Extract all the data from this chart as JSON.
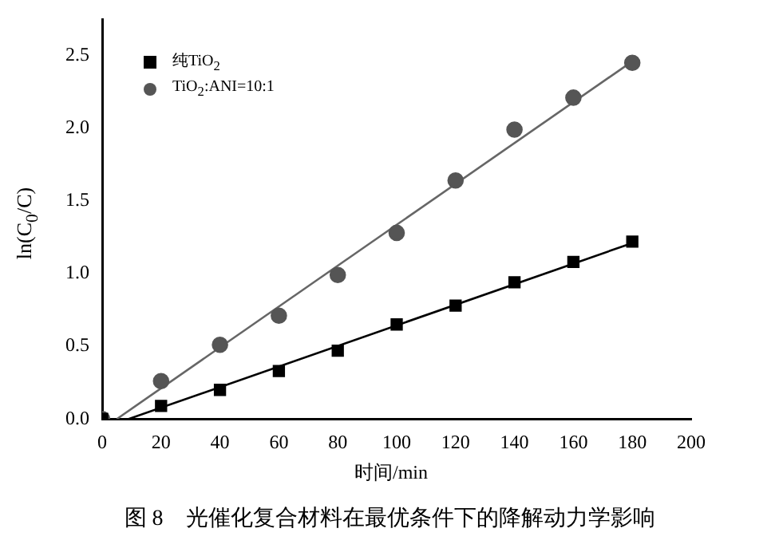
{
  "chart_data": {
    "type": "scatter",
    "xlabel": "时间/min",
    "ylabel": "ln(C$_{0}$/C)",
    "xlim": [
      0,
      200
    ],
    "ylim": [
      0,
      2.75
    ],
    "xticks": [
      0,
      20,
      40,
      60,
      80,
      100,
      120,
      140,
      160,
      180,
      200
    ],
    "yticks": [
      {
        "value": 0,
        "label": "0.0"
      },
      {
        "value": 0.5,
        "label": "0.5"
      },
      {
        "value": 1,
        "label": "1.0"
      },
      {
        "value": 1.5,
        "label": "1.5"
      },
      {
        "value": 2,
        "label": "2.0"
      },
      {
        "value": 2.5,
        "label": "2.5"
      }
    ],
    "x": [
      0,
      20,
      40,
      60,
      80,
      100,
      120,
      140,
      160,
      180
    ],
    "series": [
      {
        "name": "纯TiO$_{2}$",
        "color": "#000000",
        "marker": "square",
        "values": [
          0,
          0.09,
          0.2,
          0.33,
          0.47,
          0.65,
          0.78,
          0.94,
          1.08,
          1.22
        ]
      },
      {
        "name": "TiO$_{2}$:ANI=10:1",
        "color": "#555555",
        "marker": "circle",
        "values": [
          0,
          0.26,
          0.51,
          0.71,
          0.99,
          1.28,
          1.64,
          1.99,
          2.21,
          2.45
        ]
      },
      {
        "type": "line",
        "color": "#000000",
        "marker": "none",
        "x": [
          9,
          180
        ],
        "values": [
          0,
          1.21
        ]
      },
      {
        "type": "line",
        "color": "#666666",
        "marker": "none",
        "x": [
          5,
          180
        ],
        "values": [
          0,
          2.46
        ]
      }
    ],
    "legend": "top left",
    "grid": false,
    "annotations": [
      "图 8　光催化复合材料在最优条件下的降解动力学影响"
    ]
  }
}
